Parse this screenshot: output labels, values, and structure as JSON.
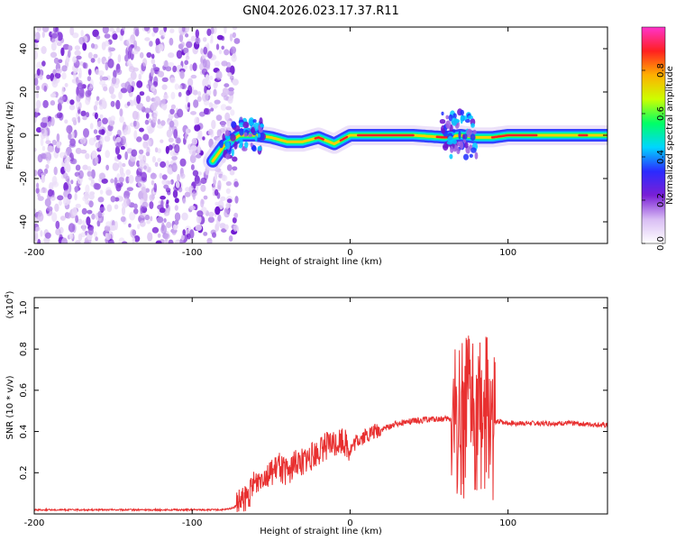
{
  "chart_data": [
    {
      "type": "heatmap",
      "title": "GN04.2026.023.17.37.R11",
      "xlabel": "Height of straight line (km)",
      "ylabel": "Frequency (Hz)",
      "xlim": [
        -200,
        163
      ],
      "ylim": [
        -50,
        50
      ],
      "xticks": [
        "-200",
        "-100",
        "0",
        "100"
      ],
      "xtick_values": [
        -200,
        -100,
        0,
        100
      ],
      "yticks": [
        "40",
        "20",
        "0",
        "-20",
        "-40"
      ],
      "ytick_values": [
        40,
        20,
        0,
        -20,
        -40
      ],
      "noise_region_x": [
        -200,
        -75
      ],
      "signal_track": {
        "x": [
          -87,
          -80,
          -70,
          -60,
          -50,
          -40,
          -30,
          -20,
          -10,
          0,
          20,
          40,
          60,
          70,
          80,
          90,
          100,
          120,
          140,
          163
        ],
        "y": [
          -12,
          -5,
          0,
          0,
          -1,
          -3,
          -3,
          -1,
          -4,
          0,
          0,
          0,
          -1,
          0,
          -1,
          -1,
          0,
          0,
          0,
          0
        ]
      },
      "colorbar": {
        "label": "Normalized spectral amplitude",
        "range": [
          0,
          1
        ],
        "ticks": [
          "0.0",
          "0.2",
          "0.4",
          "0.6",
          "0.8"
        ],
        "tick_values": [
          0.0,
          0.2,
          0.4,
          0.6,
          0.8
        ],
        "colors": [
          "#ffffff",
          "#d9bdf4",
          "#7a1fd6",
          "#2b2bff",
          "#00d6ff",
          "#00ff66",
          "#ccff00",
          "#ffb000",
          "#ff2020",
          "#ff33cc"
        ]
      }
    },
    {
      "type": "line",
      "xlabel": "Height of straight line (km)",
      "ylabel": "SNR (10 * v/v)",
      "scale_label": "(x10",
      "scale_exp": "4",
      "xlim": [
        -200,
        163
      ],
      "ylim": [
        0,
        1.05
      ],
      "xticks": [
        "-200",
        "-100",
        "0",
        "100"
      ],
      "xtick_values": [
        -200,
        -100,
        0,
        100
      ],
      "yticks": [
        "1.0",
        "0.8",
        "0.6",
        "0.4",
        "0.2"
      ],
      "ytick_values": [
        1.0,
        0.8,
        0.6,
        0.4,
        0.2
      ],
      "series": [
        {
          "name": "SNR",
          "color": "#e83030",
          "x": [
            -200,
            -150,
            -100,
            -80,
            -74,
            -65,
            -60,
            -55,
            -50,
            -45,
            -40,
            -35,
            -30,
            -25,
            -20,
            -15,
            -10,
            -5,
            0,
            5,
            10,
            20,
            30,
            40,
            50,
            60,
            65,
            70,
            72,
            75,
            78,
            80,
            85,
            88,
            90,
            92,
            95,
            100,
            110,
            120,
            140,
            163
          ],
          "y": [
            0.02,
            0.02,
            0.02,
            0.02,
            0.03,
            0.08,
            0.15,
            0.2,
            0.19,
            0.23,
            0.2,
            0.24,
            0.26,
            0.27,
            0.3,
            0.33,
            0.34,
            0.36,
            0.31,
            0.36,
            0.38,
            0.41,
            0.44,
            0.45,
            0.46,
            0.46,
            0.46,
            0.46,
            0.45,
            0.5,
            0.52,
            0.42,
            0.5,
            0.46,
            0.44,
            0.44,
            0.45,
            0.44,
            0.44,
            0.44,
            0.44,
            0.43
          ]
        }
      ]
    }
  ]
}
